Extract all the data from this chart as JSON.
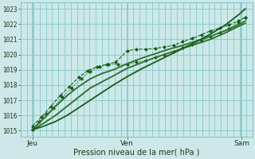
{
  "bg_color": "#cce8e8",
  "grid_color": "#88c8c8",
  "line_color_dark": "#1a5c1a",
  "line_color_med": "#2a6e2a",
  "xlabel": "Pression niveau de la mer( hPa )",
  "yticks": [
    1015,
    1016,
    1017,
    1018,
    1019,
    1020,
    1021,
    1022,
    1023
  ],
  "ylim": [
    1014.6,
    1023.4
  ],
  "xlim": [
    0.0,
    1.0
  ],
  "xtick_positions": [
    0.05,
    0.46,
    0.955
  ],
  "xtick_labels": [
    "Jeu",
    "Ven",
    "Sam"
  ],
  "vline_positions": [
    0.05,
    0.46,
    0.955
  ],
  "n_vgrid": 38,
  "lines": [
    {
      "x": [
        0.05,
        0.08,
        0.11,
        0.14,
        0.18,
        0.22,
        0.26,
        0.3,
        0.34,
        0.38,
        0.42,
        0.46,
        0.5,
        0.54,
        0.58,
        0.62,
        0.66,
        0.7,
        0.74,
        0.78,
        0.82,
        0.86,
        0.9,
        0.94,
        0.97
      ],
      "y": [
        1015.05,
        1015.6,
        1016.1,
        1016.5,
        1017.2,
        1017.8,
        1018.4,
        1018.9,
        1019.2,
        1019.35,
        1019.35,
        1019.35,
        1019.5,
        1019.6,
        1019.8,
        1020.0,
        1020.2,
        1020.45,
        1020.65,
        1020.9,
        1021.2,
        1021.45,
        1021.7,
        1022.1,
        1022.45
      ],
      "marker": "D",
      "markersize": 2.0,
      "linewidth": 0.8,
      "linestyle": ":",
      "color": "#1a5c1a"
    },
    {
      "x": [
        0.05,
        0.09,
        0.13,
        0.17,
        0.21,
        0.25,
        0.29,
        0.33,
        0.37,
        0.41,
        0.46,
        0.5,
        0.54,
        0.58,
        0.62,
        0.66,
        0.7,
        0.74,
        0.78,
        0.82,
        0.86,
        0.9,
        0.94,
        0.97
      ],
      "y": [
        1015.3,
        1015.9,
        1016.6,
        1017.3,
        1017.9,
        1018.5,
        1018.95,
        1019.2,
        1019.35,
        1019.5,
        1020.25,
        1020.35,
        1020.35,
        1020.4,
        1020.5,
        1020.6,
        1020.85,
        1021.05,
        1021.3,
        1021.55,
        1021.75,
        1021.95,
        1022.2,
        1022.45
      ],
      "marker": "D",
      "markersize": 2.0,
      "linewidth": 0.8,
      "linestyle": "--",
      "color": "#1a5c1a"
    },
    {
      "x": [
        0.05,
        0.1,
        0.15,
        0.2,
        0.25,
        0.3,
        0.35,
        0.4,
        0.46,
        0.52,
        0.58,
        0.64,
        0.7,
        0.76,
        0.82,
        0.88,
        0.94,
        0.97
      ],
      "y": [
        1015.1,
        1015.8,
        1016.6,
        1017.3,
        1017.9,
        1018.4,
        1018.75,
        1019.0,
        1019.4,
        1019.75,
        1020.05,
        1020.35,
        1020.6,
        1020.9,
        1021.2,
        1021.55,
        1021.95,
        1022.2
      ],
      "marker": null,
      "markersize": 0,
      "linewidth": 1.3,
      "linestyle": "-",
      "color": "#2a6e2a"
    },
    {
      "x": [
        0.05,
        0.1,
        0.15,
        0.2,
        0.25,
        0.3,
        0.35,
        0.4,
        0.46,
        0.52,
        0.58,
        0.64,
        0.7,
        0.76,
        0.82,
        0.88,
        0.94,
        0.97
      ],
      "y": [
        1015.05,
        1015.5,
        1016.0,
        1016.6,
        1017.2,
        1017.8,
        1018.2,
        1018.6,
        1019.1,
        1019.45,
        1019.8,
        1020.1,
        1020.4,
        1020.7,
        1021.0,
        1021.4,
        1021.85,
        1022.05
      ],
      "marker": null,
      "markersize": 0,
      "linewidth": 1.3,
      "linestyle": "-",
      "color": "#2a6e2a"
    },
    {
      "x": [
        0.05,
        0.1,
        0.15,
        0.2,
        0.25,
        0.3,
        0.35,
        0.4,
        0.46,
        0.52,
        0.58,
        0.64,
        0.7,
        0.76,
        0.82,
        0.88,
        0.94,
        0.97
      ],
      "y": [
        1015.05,
        1015.3,
        1015.6,
        1016.0,
        1016.5,
        1017.0,
        1017.5,
        1018.0,
        1018.55,
        1019.05,
        1019.5,
        1019.95,
        1020.4,
        1020.85,
        1021.35,
        1021.9,
        1022.6,
        1023.0
      ],
      "marker": null,
      "markersize": 0,
      "linewidth": 1.3,
      "linestyle": "-",
      "color": "#1a5c1a"
    }
  ]
}
